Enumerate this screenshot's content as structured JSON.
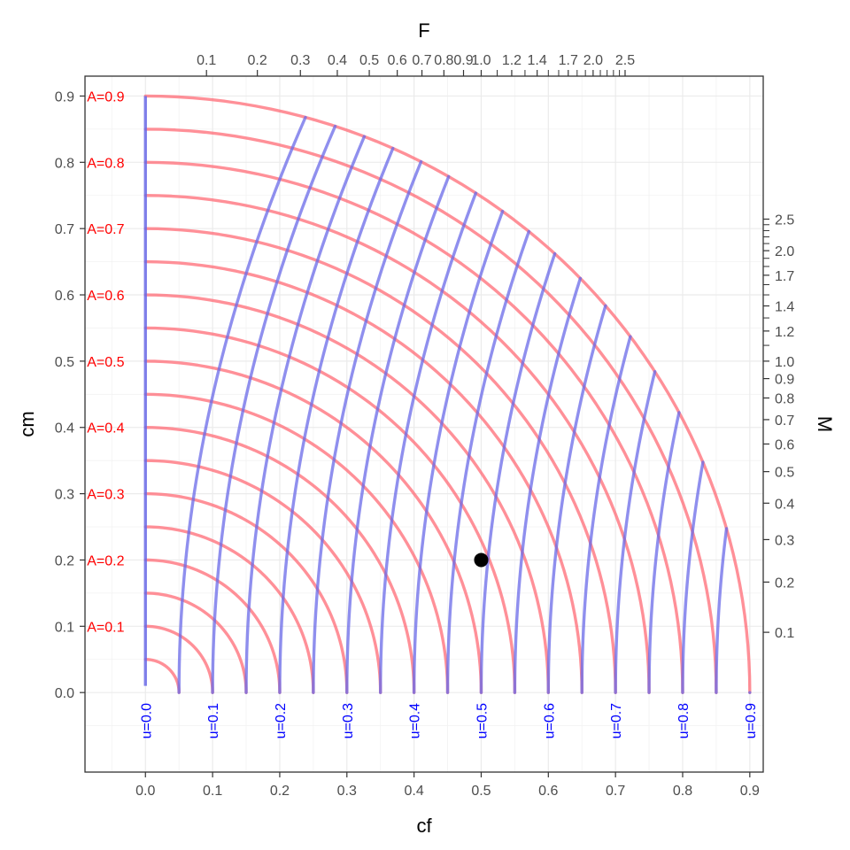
{
  "chart_data": {
    "type": "line",
    "xlabel": "cf",
    "ylabel": "cm",
    "top_label": "F",
    "right_label": "M",
    "xlim": [
      -0.09,
      0.92
    ],
    "ylim": [
      -0.12,
      0.93
    ],
    "x_ticks": [
      0.0,
      0.1,
      0.2,
      0.3,
      0.4,
      0.5,
      0.6,
      0.7,
      0.8,
      0.9
    ],
    "x_tick_labels": [
      "0.0",
      "0.1",
      "0.2",
      "0.3",
      "0.4",
      "0.5",
      "0.6",
      "0.7",
      "0.8",
      "0.9"
    ],
    "y_ticks": [
      0.0,
      0.1,
      0.2,
      0.3,
      0.4,
      0.5,
      0.6,
      0.7,
      0.8,
      0.9
    ],
    "y_tick_labels": [
      "0.0",
      "0.1",
      "0.2",
      "0.3",
      "0.4",
      "0.5",
      "0.6",
      "0.7",
      "0.8",
      "0.9"
    ],
    "top_ticks": [
      {
        "value": 0.1,
        "label": "0.1"
      },
      {
        "value": 0.2,
        "label": "0.2"
      },
      {
        "value": 0.3,
        "label": "0.3"
      },
      {
        "value": 0.4,
        "label": "0.4"
      },
      {
        "value": 0.5,
        "label": "0.5"
      },
      {
        "value": 0.6,
        "label": "0.6"
      },
      {
        "value": 0.7,
        "label": "0.7"
      },
      {
        "value": 0.8,
        "label": "0.8"
      },
      {
        "value": 0.9,
        "label": "0.9"
      },
      {
        "value": 1.0,
        "label": "1.0"
      },
      {
        "value": 1.2,
        "label": "1.2"
      },
      {
        "value": 1.4,
        "label": "1.4"
      },
      {
        "value": 1.7,
        "label": "1.7"
      },
      {
        "value": 2.0,
        "label": "2.0"
      },
      {
        "value": 2.5,
        "label": "2.5"
      }
    ],
    "top_minor_ticks": [
      1.1,
      1.3,
      1.5,
      1.6,
      1.8,
      1.9,
      2.1,
      2.2,
      2.3,
      2.4
    ],
    "right_ticks": [
      {
        "value": 0.1,
        "label": "0.1"
      },
      {
        "value": 0.2,
        "label": "0.2"
      },
      {
        "value": 0.3,
        "label": "0.3"
      },
      {
        "value": 0.4,
        "label": "0.4"
      },
      {
        "value": 0.5,
        "label": "0.5"
      },
      {
        "value": 0.6,
        "label": "0.6"
      },
      {
        "value": 0.7,
        "label": "0.7"
      },
      {
        "value": 0.8,
        "label": "0.8"
      },
      {
        "value": 0.9,
        "label": "0.9"
      },
      {
        "value": 1.0,
        "label": "1.0"
      },
      {
        "value": 1.2,
        "label": "1.2"
      },
      {
        "value": 1.4,
        "label": "1.4"
      },
      {
        "value": 1.7,
        "label": "1.7"
      },
      {
        "value": 2.0,
        "label": "2.0"
      },
      {
        "value": 2.5,
        "label": "2.5"
      }
    ],
    "right_minor_ticks": [
      1.1,
      1.3,
      1.5,
      1.6,
      1.8,
      1.9,
      2.1,
      2.2,
      2.3,
      2.4
    ],
    "A_curves": [
      0.05,
      0.1,
      0.15,
      0.2,
      0.25,
      0.3,
      0.35,
      0.4,
      0.45,
      0.5,
      0.55,
      0.6,
      0.65,
      0.7,
      0.75,
      0.8,
      0.85,
      0.9
    ],
    "A_labels": [
      {
        "value": 0.1,
        "label": "A=0.1"
      },
      {
        "value": 0.2,
        "label": "A=0.2"
      },
      {
        "value": 0.3,
        "label": "A=0.3"
      },
      {
        "value": 0.4,
        "label": "A=0.4"
      },
      {
        "value": 0.5,
        "label": "A=0.5"
      },
      {
        "value": 0.6,
        "label": "A=0.6"
      },
      {
        "value": 0.7,
        "label": "A=0.7"
      },
      {
        "value": 0.8,
        "label": "A=0.8"
      },
      {
        "value": 0.9,
        "label": "A=0.9"
      }
    ],
    "u_curves": [
      0.0,
      0.05,
      0.1,
      0.15,
      0.2,
      0.25,
      0.3,
      0.35,
      0.4,
      0.45,
      0.5,
      0.55,
      0.6,
      0.65,
      0.7,
      0.75,
      0.8,
      0.85,
      0.9
    ],
    "u_labels": [
      {
        "value": 0.0,
        "label": "u=0.0"
      },
      {
        "value": 0.1,
        "label": "u=0.1"
      },
      {
        "value": 0.2,
        "label": "u=0.2"
      },
      {
        "value": 0.3,
        "label": "u=0.3"
      },
      {
        "value": 0.4,
        "label": "u=0.4"
      },
      {
        "value": 0.5,
        "label": "u=0.5"
      },
      {
        "value": 0.6,
        "label": "u=0.6"
      },
      {
        "value": 0.7,
        "label": "u=0.7"
      },
      {
        "value": 0.8,
        "label": "u=0.8"
      },
      {
        "value": 0.9,
        "label": "u=0.9"
      }
    ],
    "point": {
      "x": 0.5,
      "y": 0.2
    },
    "colors": {
      "A_curve": "#ff6b75",
      "u_curve": "#6a6ae8",
      "A_label": "#ff0000",
      "u_label": "#0000ff",
      "point": "#000000"
    },
    "grid": true
  }
}
